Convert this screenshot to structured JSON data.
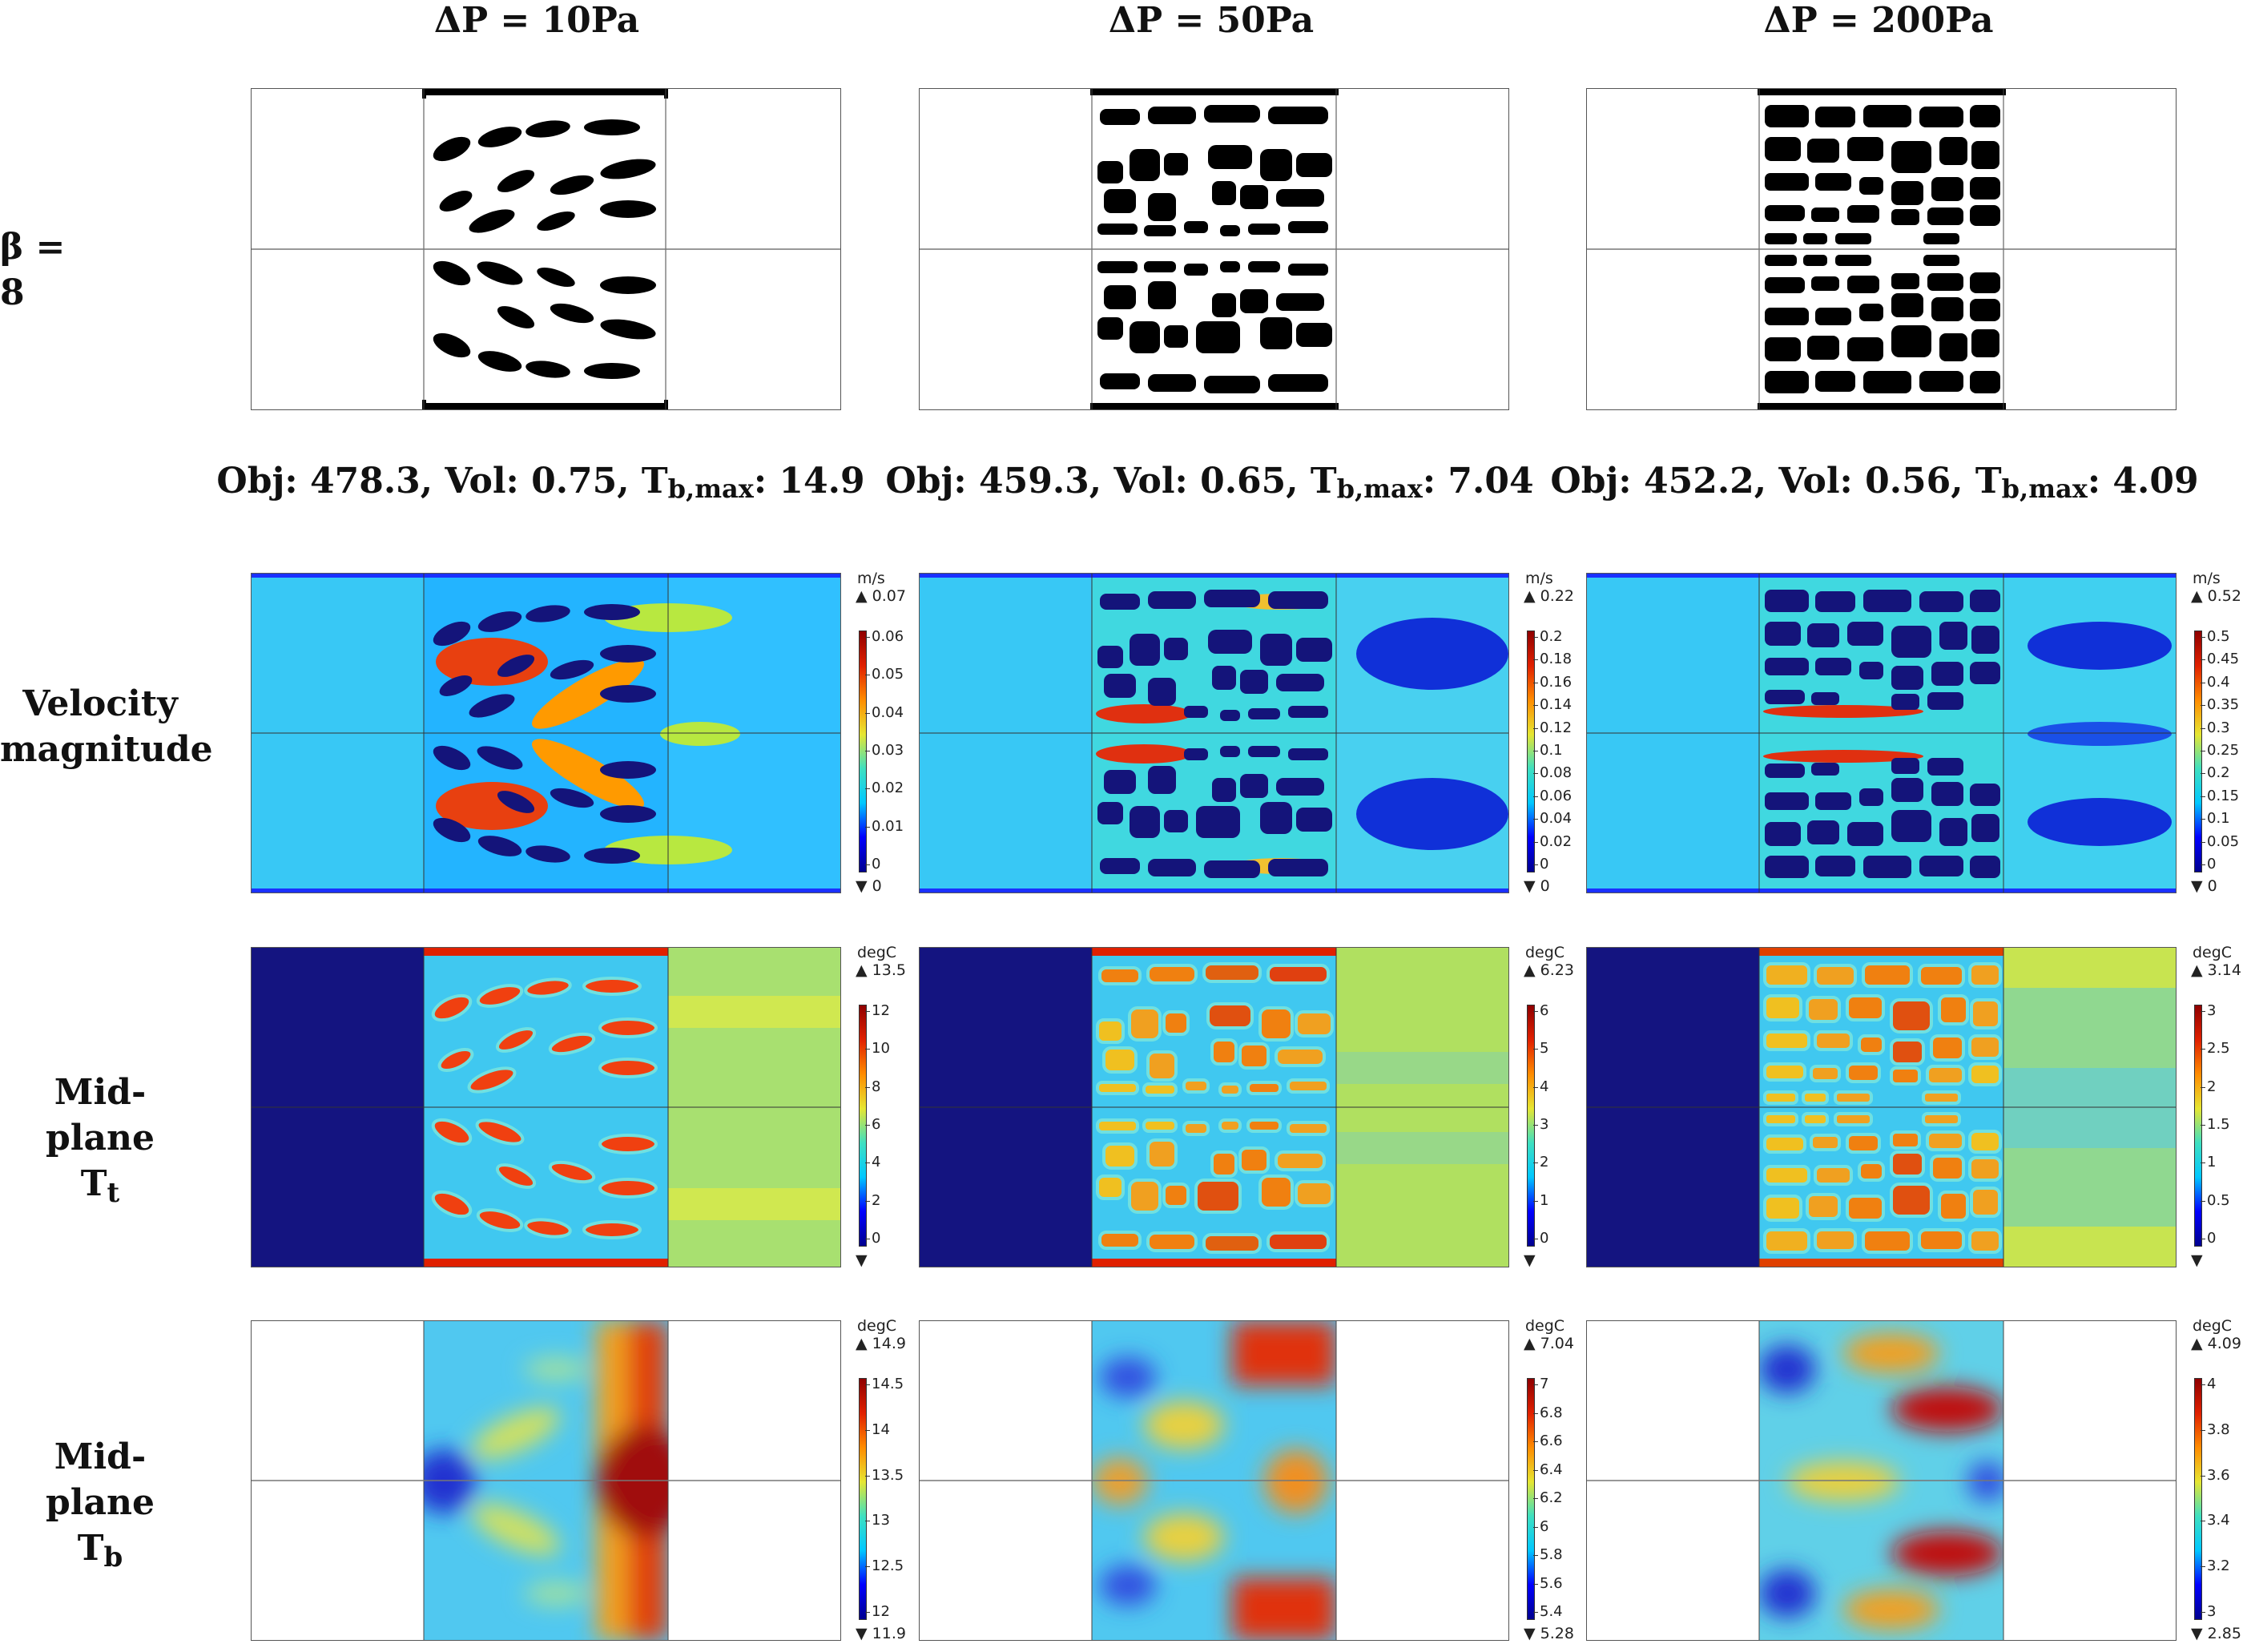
{
  "columns": [
    {
      "title": "ΔP = 10Pa"
    },
    {
      "title": "ΔP = 50Pa"
    },
    {
      "title": "ΔP = 200Pa"
    }
  ],
  "rows": {
    "beta": "β = 8",
    "velocity": [
      "Velocity",
      "magnitude"
    ],
    "tt": [
      "Mid-plane",
      "T",
      "t"
    ],
    "tb": [
      "Mid-plane",
      "T",
      "b"
    ]
  },
  "metrics": [
    {
      "obj_label": "Obj: 478.3, Vol: 0.75, T",
      "sub": "b,max",
      "tail": ": 14.9"
    },
    {
      "obj_label": "Obj: 459.3, Vol: 0.65, T",
      "sub": "b,max",
      "tail": ": 7.04"
    },
    {
      "obj_label": "Obj: 452.2, Vol: 0.56, T",
      "sub": "b,max",
      "tail": ": 4.09"
    }
  ],
  "colorbars": {
    "velocity": [
      {
        "unit": "m/s",
        "max": "0.07",
        "min": "0",
        "ticks": [
          "0.06",
          "0.05",
          "0.04",
          "0.03",
          "0.02",
          "0.01",
          "0"
        ]
      },
      {
        "unit": "m/s",
        "max": "0.22",
        "min": "0",
        "ticks": [
          "0.2",
          "0.18",
          "0.16",
          "0.14",
          "0.12",
          "0.1",
          "0.08",
          "0.06",
          "0.04",
          "0.02",
          "0"
        ]
      },
      {
        "unit": "m/s",
        "max": "0.52",
        "min": "0",
        "ticks": [
          "0.5",
          "0.45",
          "0.4",
          "0.35",
          "0.3",
          "0.25",
          "0.2",
          "0.15",
          "0.1",
          "0.05",
          "0"
        ]
      }
    ],
    "tt": [
      {
        "unit": "degC",
        "max": "13.5",
        "min": "",
        "ticks": [
          "12",
          "10",
          "8",
          "6",
          "4",
          "2",
          "0"
        ]
      },
      {
        "unit": "degC",
        "max": "6.23",
        "min": "",
        "ticks": [
          "6",
          "5",
          "4",
          "3",
          "2",
          "1",
          "0"
        ]
      },
      {
        "unit": "degC",
        "max": "3.14",
        "min": "",
        "ticks": [
          "3",
          "2.5",
          "2",
          "1.5",
          "1",
          "0.5",
          "0"
        ]
      }
    ],
    "tb": [
      {
        "unit": "degC",
        "max": "14.9",
        "min": "11.9",
        "ticks": [
          "14.5",
          "14",
          "13.5",
          "13",
          "12.5",
          "12"
        ]
      },
      {
        "unit": "degC",
        "max": "7.04",
        "min": "5.28",
        "ticks": [
          "7",
          "6.8",
          "6.6",
          "6.4",
          "6.2",
          "6",
          "5.8",
          "5.6",
          "5.4"
        ]
      },
      {
        "unit": "degC",
        "max": "4.09",
        "min": "2.85",
        "ticks": [
          "4",
          "3.8",
          "3.6",
          "3.4",
          "3.2",
          "3"
        ]
      }
    ]
  },
  "colormap": {
    "jet": [
      "#00008f",
      "#0000ff",
      "#00c8ff",
      "#3fe0c0",
      "#e6e632",
      "#ff8c00",
      "#e02000",
      "#8f0000"
    ],
    "solid": "#000000",
    "frame": "#555555"
  }
}
